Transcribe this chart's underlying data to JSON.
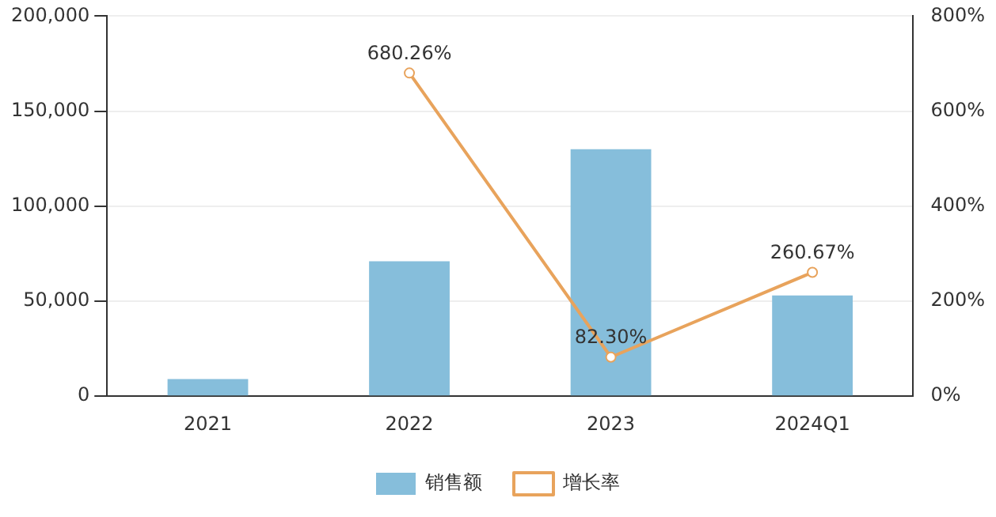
{
  "chart_data": {
    "type": "bar",
    "categories": [
      "2021",
      "2022",
      "2023",
      "2024Q1"
    ],
    "series": [
      {
        "name": "销售额",
        "color": "#86bedb",
        "values": [
          9000,
          71000,
          130000,
          53000
        ]
      },
      {
        "name": "增长率",
        "type": "line",
        "axis": "y2",
        "color": "#e8a35c",
        "values": [
          null,
          680.26,
          82.3,
          260.67
        ],
        "value_labels": [
          null,
          "680.26%",
          "82.30%",
          "260.67%"
        ]
      }
    ],
    "ylim": [
      0,
      200000
    ],
    "yticks": [
      {
        "value": 0,
        "label": "0"
      },
      {
        "value": 50000,
        "label": "50,000"
      },
      {
        "value": 100000,
        "label": "100,000"
      },
      {
        "value": 150000,
        "label": "150,000"
      },
      {
        "value": 200000,
        "label": "200,000"
      }
    ],
    "y2lim": [
      0,
      800
    ],
    "y2ticks": [
      {
        "value": 0,
        "label": "0%"
      },
      {
        "value": 200,
        "label": "200%"
      },
      {
        "value": 400,
        "label": "400%"
      },
      {
        "value": 600,
        "label": "600%"
      },
      {
        "value": 800,
        "label": "800%"
      }
    ],
    "grid": "y",
    "legend": "bottom",
    "marker": "circle",
    "line_style": "solid"
  }
}
